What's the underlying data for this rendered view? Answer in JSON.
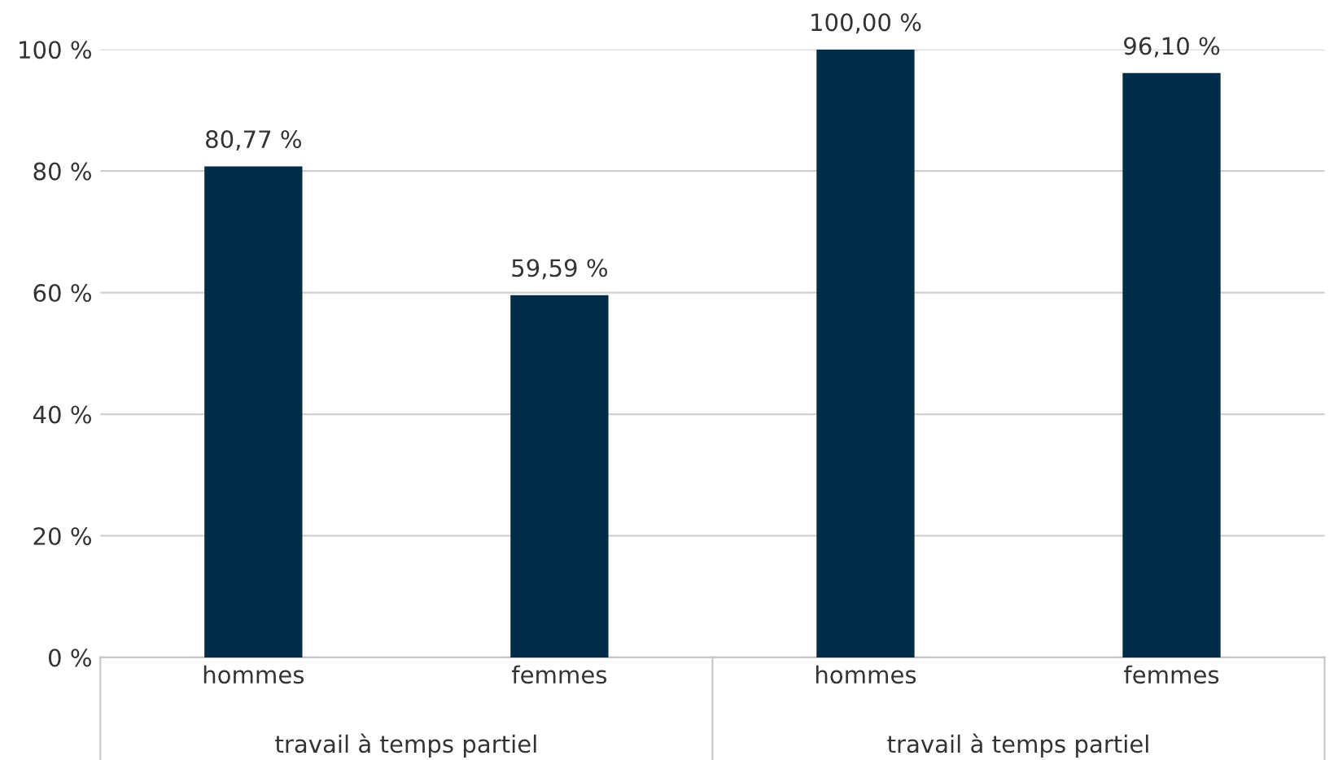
{
  "chart_data": {
    "type": "bar",
    "categories": [
      "hommes",
      "femmes",
      "hommes",
      "femmes"
    ],
    "values": [
      80.77,
      59.59,
      100.0,
      96.1
    ],
    "value_labels": [
      "80,77 %",
      "59,59 %",
      "100,00 %",
      "96,10 %"
    ],
    "color": "#012d4b",
    "ylim": [
      0,
      100
    ],
    "yticks": [
      {
        "value": 0,
        "label": "0 %"
      },
      {
        "value": 20,
        "label": "20 %"
      },
      {
        "value": 40,
        "label": "40 %"
      },
      {
        "value": 60,
        "label": "60 %"
      },
      {
        "value": 80,
        "label": "80 %"
      },
      {
        "value": 100,
        "label": "100 %"
      }
    ],
    "grid": "y",
    "annotations": [
      "travail à temps partiel",
      "travail à temps partiel"
    ]
  }
}
